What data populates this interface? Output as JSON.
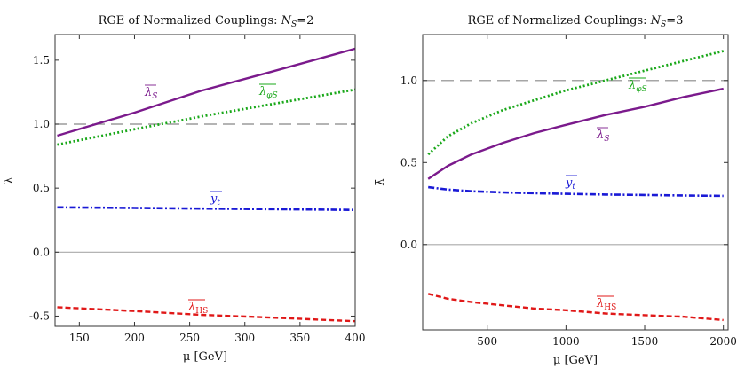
{
  "chart_data": [
    {
      "type": "line",
      "title": "RGE of Normalized Couplings: ",
      "title_var": "N",
      "title_sub": "S",
      "title_val": "=2",
      "xlabel": "μ [GeV]",
      "ylabel": "λ̄",
      "xlim": [
        128,
        400
      ],
      "ylim": [
        -0.58,
        1.7
      ],
      "xticks": [
        150,
        200,
        250,
        300,
        350,
        400
      ],
      "yticks": [
        -0.5,
        0.0,
        0.5,
        1.0,
        1.5
      ],
      "xtick_labels": [
        "150",
        "200",
        "250",
        "300",
        "350",
        "400"
      ],
      "ytick_labels": [
        "-0.5",
        "0.0",
        "0.5",
        "1.0",
        "1.5"
      ],
      "reference_lines": [
        {
          "y": 1.0,
          "color": "#888888",
          "style": "dashed"
        },
        {
          "y": 0.0,
          "color": "#aaaaaa",
          "style": "solid"
        }
      ],
      "series": [
        {
          "name": "λ̄S",
          "label_main": "λ",
          "label_sub": "S",
          "color": "#7b1a8c",
          "style": "solid",
          "x": [
            130,
            200,
            260,
            320,
            400
          ],
          "values": [
            0.91,
            1.09,
            1.26,
            1.4,
            1.59
          ]
        },
        {
          "name": "λ̄φS",
          "label_main": "λ",
          "label_sub": "φS",
          "color": "#1aa81a",
          "style": "dotted",
          "x": [
            130,
            200,
            260,
            320,
            400
          ],
          "values": [
            0.84,
            0.96,
            1.06,
            1.15,
            1.27
          ]
        },
        {
          "name": "ȳt",
          "label_main": "y",
          "label_sub": "t",
          "color": "#1a1ad6",
          "style": "dashdot",
          "x": [
            130,
            200,
            260,
            320,
            400
          ],
          "values": [
            0.35,
            0.345,
            0.34,
            0.336,
            0.33
          ]
        },
        {
          "name": "λ̄HS",
          "label_main": "λ",
          "label_sub": "HS",
          "color": "#e01818",
          "style": "dashed",
          "x": [
            130,
            200,
            260,
            320,
            400
          ],
          "values": [
            -0.43,
            -0.46,
            -0.49,
            -0.51,
            -0.54
          ]
        }
      ]
    },
    {
      "type": "line",
      "title": "RGE of Normalized Couplings: ",
      "title_var": "N",
      "title_sub": "S",
      "title_val": "=3",
      "xlabel": "μ [GeV]",
      "ylabel": "λ̄",
      "xlim": [
        90,
        2030
      ],
      "ylim": [
        -0.52,
        1.28
      ],
      "xticks": [
        500,
        1000,
        1500,
        2000
      ],
      "yticks": [
        0.0,
        0.5,
        1.0
      ],
      "xtick_labels": [
        "500",
        "1000",
        "1500",
        "2000"
      ],
      "ytick_labels": [
        "0.0",
        "0.5",
        "1.0"
      ],
      "reference_lines": [
        {
          "y": 1.0,
          "color": "#888888",
          "style": "dashed"
        },
        {
          "y": 0.0,
          "color": "#aaaaaa",
          "style": "solid"
        }
      ],
      "series": [
        {
          "name": "λ̄φS",
          "label_main": "λ",
          "label_sub": "φS",
          "color": "#1aa81a",
          "style": "dotted",
          "x": [
            125,
            250,
            400,
            600,
            800,
            1000,
            1250,
            1500,
            1750,
            2000
          ],
          "values": [
            0.55,
            0.66,
            0.74,
            0.82,
            0.88,
            0.94,
            1.0,
            1.06,
            1.12,
            1.18
          ]
        },
        {
          "name": "λ̄S",
          "label_main": "λ",
          "label_sub": "S",
          "color": "#7b1a8c",
          "style": "solid",
          "x": [
            125,
            250,
            400,
            600,
            800,
            1000,
            1250,
            1500,
            1750,
            2000
          ],
          "values": [
            0.4,
            0.48,
            0.55,
            0.62,
            0.68,
            0.73,
            0.79,
            0.84,
            0.9,
            0.95
          ]
        },
        {
          "name": "ȳt",
          "label_main": "y",
          "label_sub": "t",
          "color": "#1a1ad6",
          "style": "dashdot",
          "x": [
            125,
            250,
            400,
            600,
            800,
            1000,
            1250,
            1500,
            1750,
            2000
          ],
          "values": [
            0.35,
            0.335,
            0.325,
            0.318,
            0.313,
            0.309,
            0.305,
            0.302,
            0.299,
            0.297
          ]
        },
        {
          "name": "λ̄HS",
          "label_main": "λ",
          "label_sub": "HS",
          "color": "#e01818",
          "style": "dashed",
          "x": [
            125,
            250,
            400,
            600,
            800,
            1000,
            1250,
            1500,
            1750,
            2000
          ],
          "values": [
            -0.3,
            -0.33,
            -0.35,
            -0.37,
            -0.39,
            -0.4,
            -0.42,
            -0.43,
            -0.44,
            -0.46
          ]
        }
      ]
    }
  ]
}
